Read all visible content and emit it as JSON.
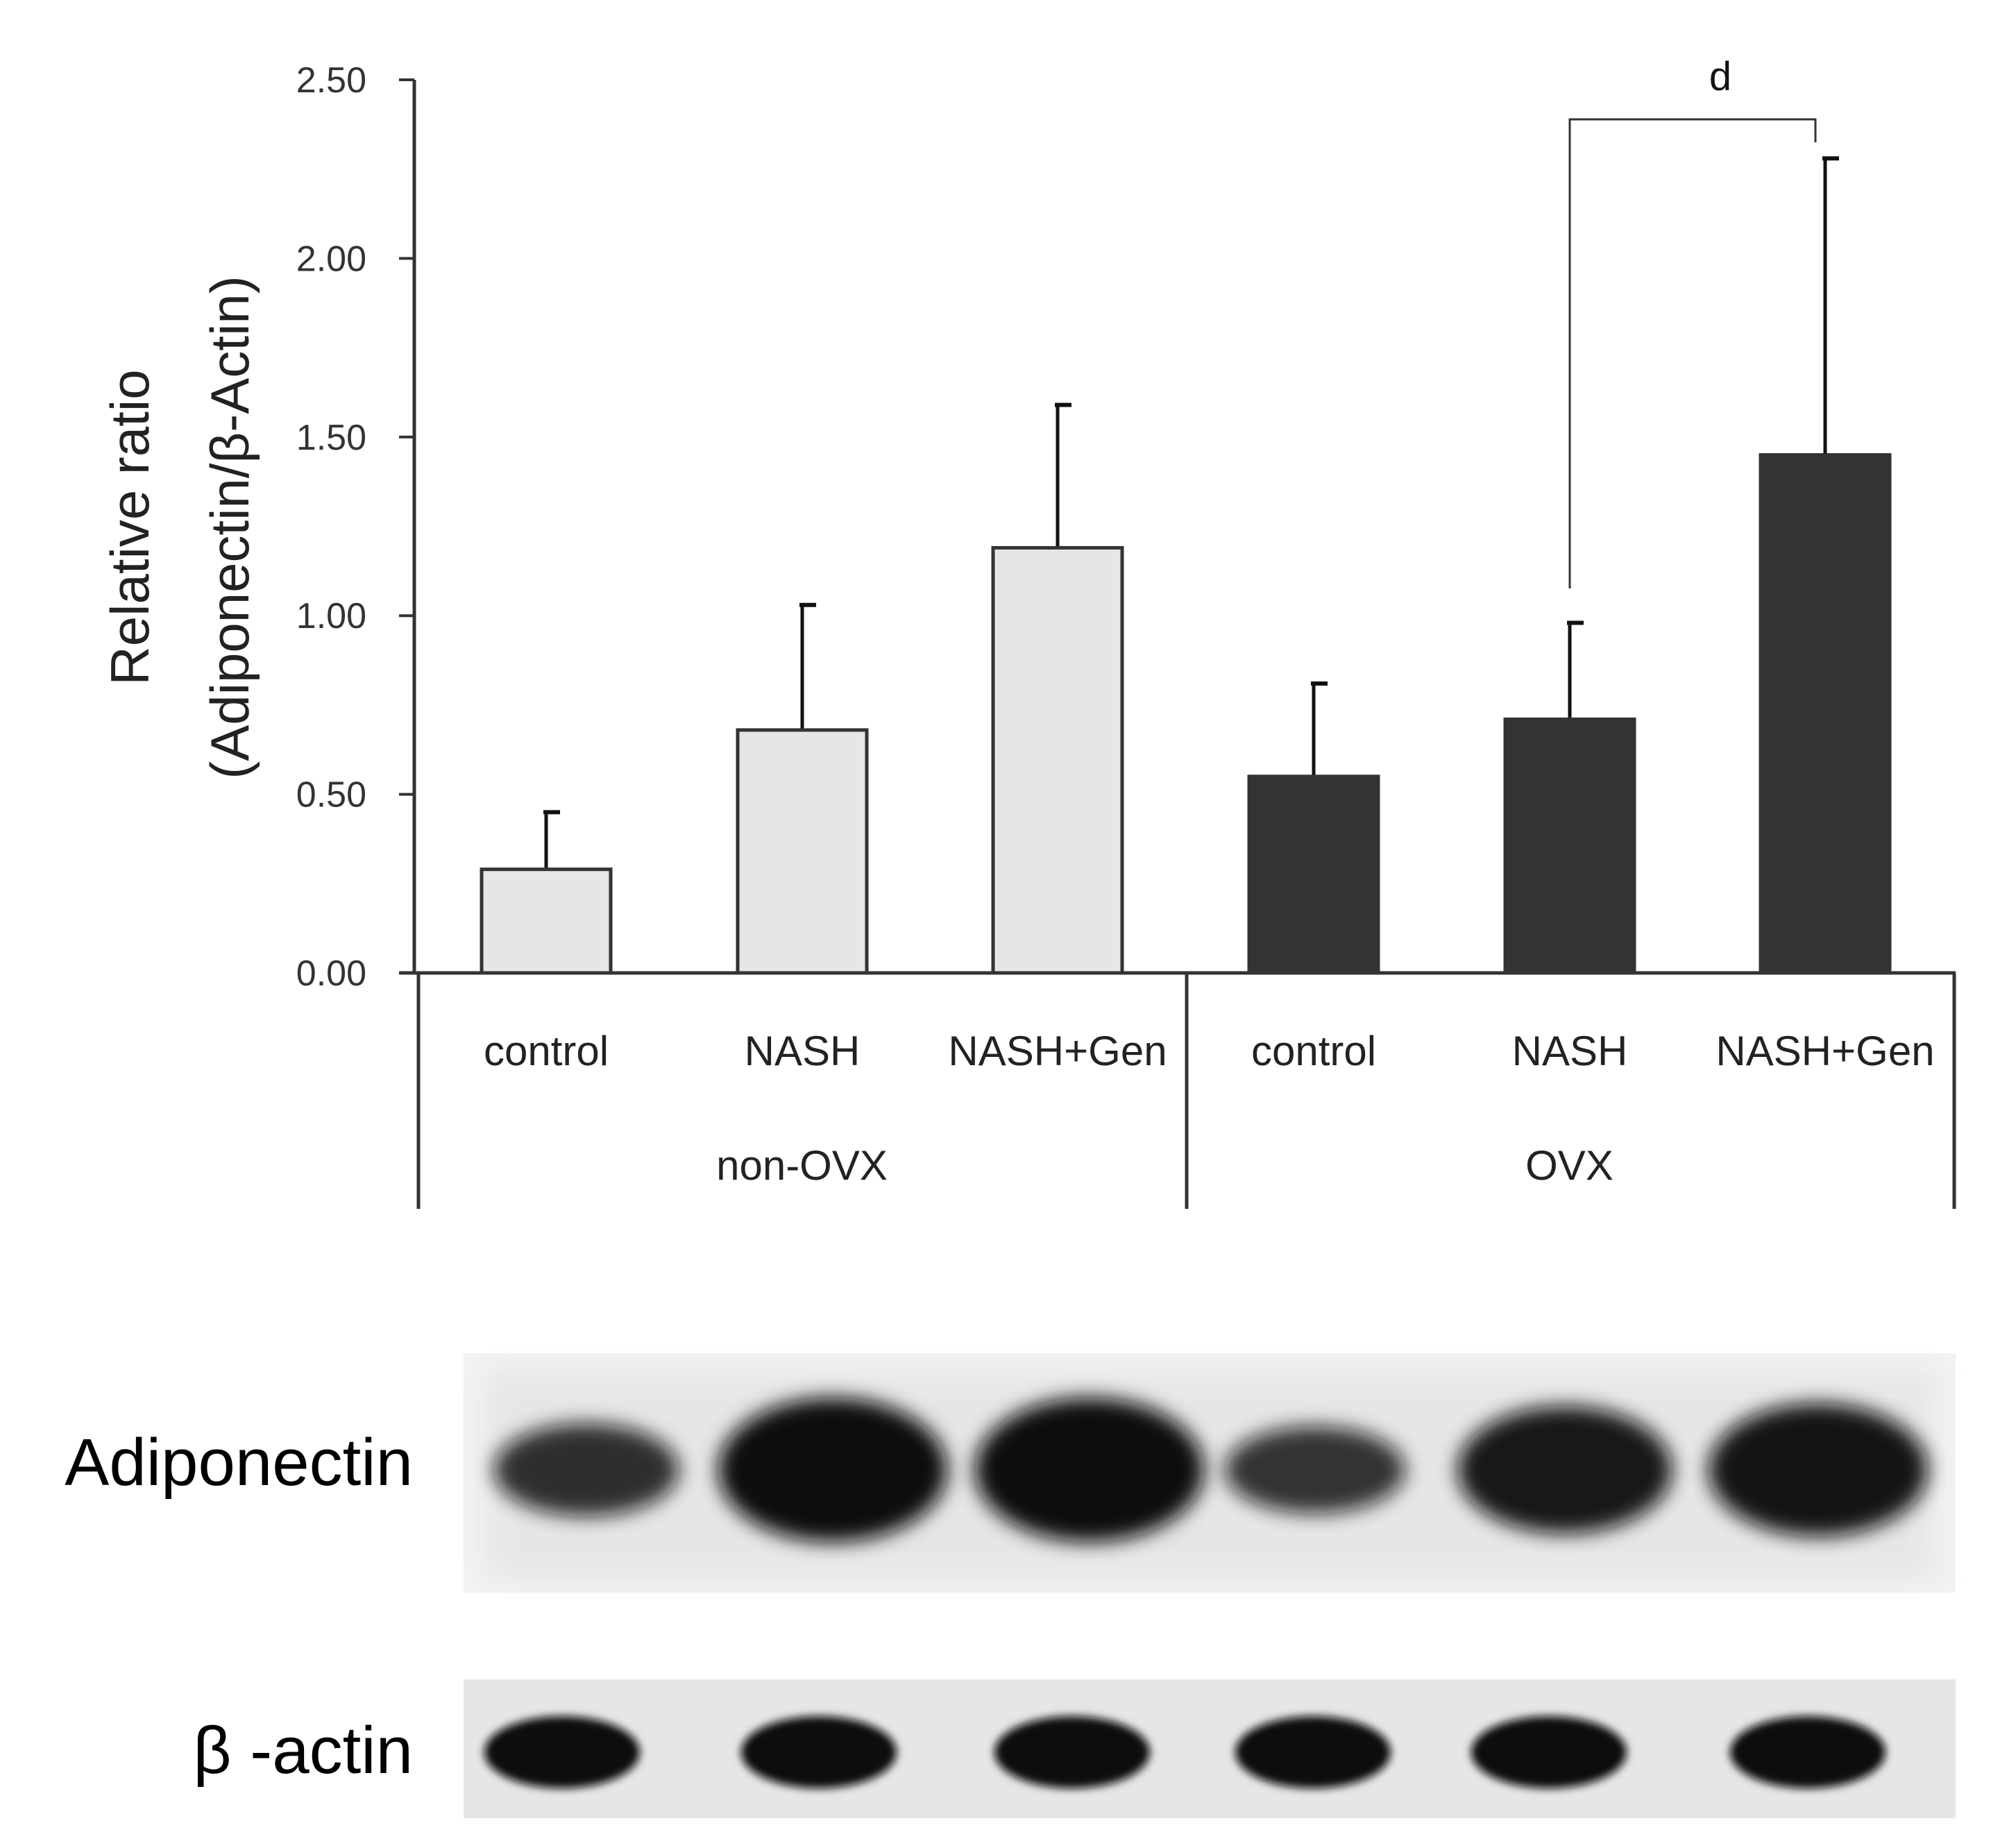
{
  "chart_data": {
    "type": "bar",
    "title": "",
    "xlabel": "",
    "ylabel_line1": "Relative ratio",
    "ylabel_line2": "(Adiponectin/β-Actin)",
    "ylim": [
      0,
      2.5
    ],
    "yticks": [
      "0.00",
      "0.50",
      "1.00",
      "1.50",
      "2.00",
      "2.50"
    ],
    "ytick_values": [
      0,
      0.5,
      1.0,
      1.5,
      2.0,
      2.5
    ],
    "grid": false,
    "categories": [
      "control",
      "NASH",
      "NASH+Gen",
      "control",
      "NASH",
      "NASH+Gen"
    ],
    "groups": [
      {
        "label": "non-OVX",
        "indices": [
          0,
          1,
          2
        ],
        "color": "#e6e6e6"
      },
      {
        "label": "OVX",
        "indices": [
          3,
          4,
          5
        ],
        "color": "#333333"
      }
    ],
    "values": [
      0.29,
      0.68,
      1.19,
      0.55,
      0.71,
      1.45
    ],
    "errors": [
      0.16,
      0.35,
      0.4,
      0.26,
      0.27,
      0.83
    ],
    "significance": [
      {
        "from": 4,
        "to": 5,
        "label": "d"
      }
    ]
  },
  "blot": {
    "rows": [
      {
        "label": "Adiponectin",
        "band_intensity": [
          0.55,
          1.0,
          1.0,
          0.5,
          0.85,
          0.9
        ]
      },
      {
        "label": "β -actin",
        "band_intensity": [
          1.0,
          1.0,
          1.0,
          1.0,
          1.0,
          1.0
        ]
      }
    ]
  },
  "colors": {
    "axis": "#333333",
    "light_bar": "#e6e6e6",
    "dark_bar": "#333333",
    "band": "#0a0a0a"
  }
}
